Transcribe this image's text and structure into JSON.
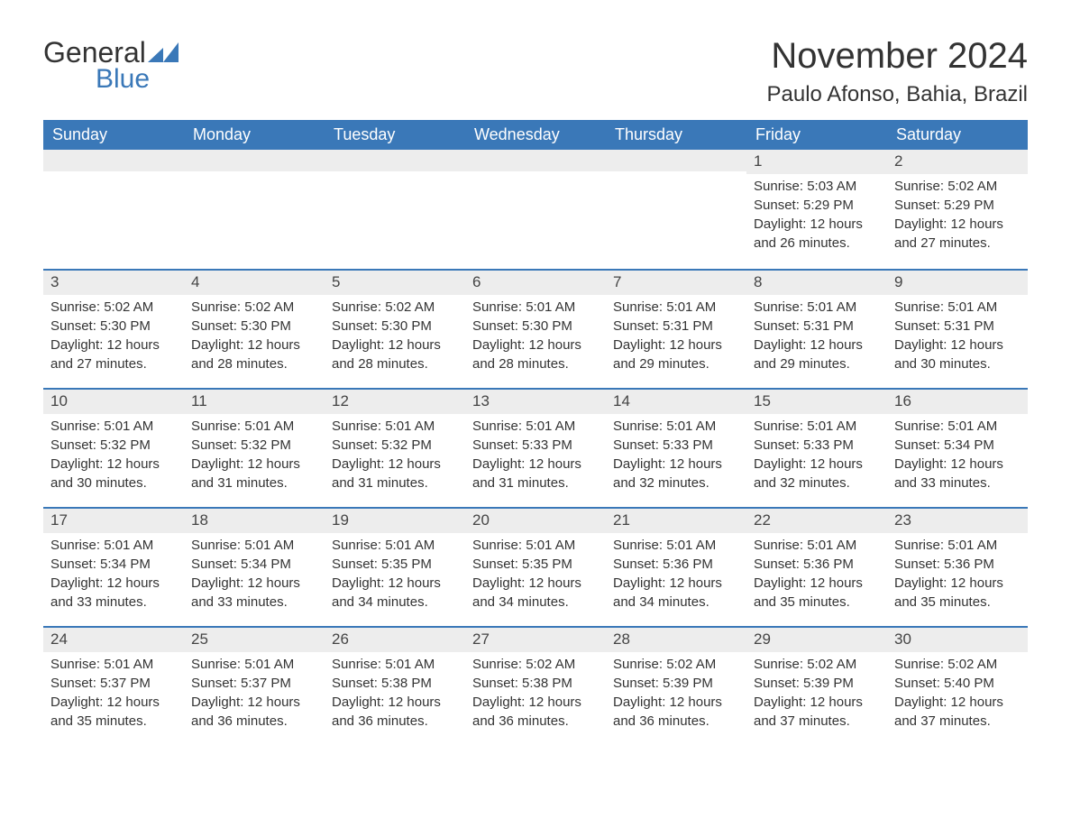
{
  "logo": {
    "text1": "General",
    "text2": "Blue",
    "accent_color": "#3a78b8"
  },
  "title": "November 2024",
  "location": "Paulo Afonso, Bahia, Brazil",
  "day_headers": [
    "Sunday",
    "Monday",
    "Tuesday",
    "Wednesday",
    "Thursday",
    "Friday",
    "Saturday"
  ],
  "colors": {
    "header_bg": "#3a78b8",
    "header_text": "#ffffff",
    "daynum_bg": "#ededed",
    "text": "#333333",
    "divider": "#3a78b8"
  },
  "weeks": [
    [
      null,
      null,
      null,
      null,
      null,
      {
        "n": "1",
        "sunrise": "Sunrise: 5:03 AM",
        "sunset": "Sunset: 5:29 PM",
        "daylight": "Daylight: 12 hours and 26 minutes."
      },
      {
        "n": "2",
        "sunrise": "Sunrise: 5:02 AM",
        "sunset": "Sunset: 5:29 PM",
        "daylight": "Daylight: 12 hours and 27 minutes."
      }
    ],
    [
      {
        "n": "3",
        "sunrise": "Sunrise: 5:02 AM",
        "sunset": "Sunset: 5:30 PM",
        "daylight": "Daylight: 12 hours and 27 minutes."
      },
      {
        "n": "4",
        "sunrise": "Sunrise: 5:02 AM",
        "sunset": "Sunset: 5:30 PM",
        "daylight": "Daylight: 12 hours and 28 minutes."
      },
      {
        "n": "5",
        "sunrise": "Sunrise: 5:02 AM",
        "sunset": "Sunset: 5:30 PM",
        "daylight": "Daylight: 12 hours and 28 minutes."
      },
      {
        "n": "6",
        "sunrise": "Sunrise: 5:01 AM",
        "sunset": "Sunset: 5:30 PM",
        "daylight": "Daylight: 12 hours and 28 minutes."
      },
      {
        "n": "7",
        "sunrise": "Sunrise: 5:01 AM",
        "sunset": "Sunset: 5:31 PM",
        "daylight": "Daylight: 12 hours and 29 minutes."
      },
      {
        "n": "8",
        "sunrise": "Sunrise: 5:01 AM",
        "sunset": "Sunset: 5:31 PM",
        "daylight": "Daylight: 12 hours and 29 minutes."
      },
      {
        "n": "9",
        "sunrise": "Sunrise: 5:01 AM",
        "sunset": "Sunset: 5:31 PM",
        "daylight": "Daylight: 12 hours and 30 minutes."
      }
    ],
    [
      {
        "n": "10",
        "sunrise": "Sunrise: 5:01 AM",
        "sunset": "Sunset: 5:32 PM",
        "daylight": "Daylight: 12 hours and 30 minutes."
      },
      {
        "n": "11",
        "sunrise": "Sunrise: 5:01 AM",
        "sunset": "Sunset: 5:32 PM",
        "daylight": "Daylight: 12 hours and 31 minutes."
      },
      {
        "n": "12",
        "sunrise": "Sunrise: 5:01 AM",
        "sunset": "Sunset: 5:32 PM",
        "daylight": "Daylight: 12 hours and 31 minutes."
      },
      {
        "n": "13",
        "sunrise": "Sunrise: 5:01 AM",
        "sunset": "Sunset: 5:33 PM",
        "daylight": "Daylight: 12 hours and 31 minutes."
      },
      {
        "n": "14",
        "sunrise": "Sunrise: 5:01 AM",
        "sunset": "Sunset: 5:33 PM",
        "daylight": "Daylight: 12 hours and 32 minutes."
      },
      {
        "n": "15",
        "sunrise": "Sunrise: 5:01 AM",
        "sunset": "Sunset: 5:33 PM",
        "daylight": "Daylight: 12 hours and 32 minutes."
      },
      {
        "n": "16",
        "sunrise": "Sunrise: 5:01 AM",
        "sunset": "Sunset: 5:34 PM",
        "daylight": "Daylight: 12 hours and 33 minutes."
      }
    ],
    [
      {
        "n": "17",
        "sunrise": "Sunrise: 5:01 AM",
        "sunset": "Sunset: 5:34 PM",
        "daylight": "Daylight: 12 hours and 33 minutes."
      },
      {
        "n": "18",
        "sunrise": "Sunrise: 5:01 AM",
        "sunset": "Sunset: 5:34 PM",
        "daylight": "Daylight: 12 hours and 33 minutes."
      },
      {
        "n": "19",
        "sunrise": "Sunrise: 5:01 AM",
        "sunset": "Sunset: 5:35 PM",
        "daylight": "Daylight: 12 hours and 34 minutes."
      },
      {
        "n": "20",
        "sunrise": "Sunrise: 5:01 AM",
        "sunset": "Sunset: 5:35 PM",
        "daylight": "Daylight: 12 hours and 34 minutes."
      },
      {
        "n": "21",
        "sunrise": "Sunrise: 5:01 AM",
        "sunset": "Sunset: 5:36 PM",
        "daylight": "Daylight: 12 hours and 34 minutes."
      },
      {
        "n": "22",
        "sunrise": "Sunrise: 5:01 AM",
        "sunset": "Sunset: 5:36 PM",
        "daylight": "Daylight: 12 hours and 35 minutes."
      },
      {
        "n": "23",
        "sunrise": "Sunrise: 5:01 AM",
        "sunset": "Sunset: 5:36 PM",
        "daylight": "Daylight: 12 hours and 35 minutes."
      }
    ],
    [
      {
        "n": "24",
        "sunrise": "Sunrise: 5:01 AM",
        "sunset": "Sunset: 5:37 PM",
        "daylight": "Daylight: 12 hours and 35 minutes."
      },
      {
        "n": "25",
        "sunrise": "Sunrise: 5:01 AM",
        "sunset": "Sunset: 5:37 PM",
        "daylight": "Daylight: 12 hours and 36 minutes."
      },
      {
        "n": "26",
        "sunrise": "Sunrise: 5:01 AM",
        "sunset": "Sunset: 5:38 PM",
        "daylight": "Daylight: 12 hours and 36 minutes."
      },
      {
        "n": "27",
        "sunrise": "Sunrise: 5:02 AM",
        "sunset": "Sunset: 5:38 PM",
        "daylight": "Daylight: 12 hours and 36 minutes."
      },
      {
        "n": "28",
        "sunrise": "Sunrise: 5:02 AM",
        "sunset": "Sunset: 5:39 PM",
        "daylight": "Daylight: 12 hours and 36 minutes."
      },
      {
        "n": "29",
        "sunrise": "Sunrise: 5:02 AM",
        "sunset": "Sunset: 5:39 PM",
        "daylight": "Daylight: 12 hours and 37 minutes."
      },
      {
        "n": "30",
        "sunrise": "Sunrise: 5:02 AM",
        "sunset": "Sunset: 5:40 PM",
        "daylight": "Daylight: 12 hours and 37 minutes."
      }
    ]
  ]
}
